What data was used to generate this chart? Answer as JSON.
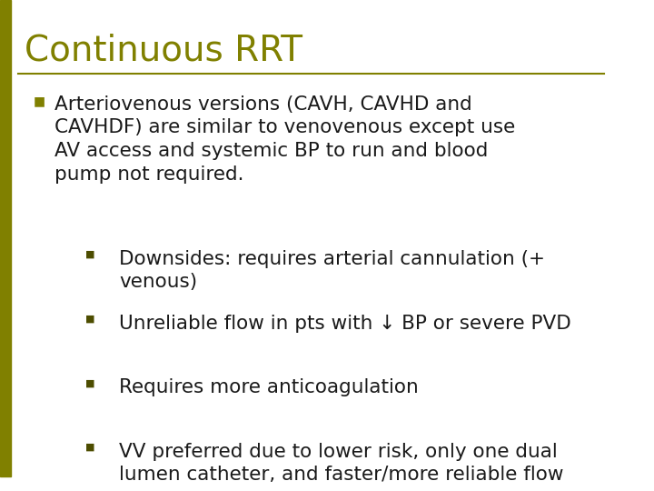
{
  "title": "Continuous RRT",
  "title_color": "#808000",
  "title_fontsize": 28,
  "background_color": "#FFFFFF",
  "line_color": "#808000",
  "bullet_color": "#808000",
  "sub_bullet_color": "#4d4d00",
  "text_color": "#1a1a1a",
  "left_bar_color": "#808000",
  "main_bullet": "Arteriovenous versions (CAVH, CAVHD and\nCAVHDF) are similar to venovenous except use\nAV access and systemic BP to run and blood\npump not required.",
  "sub_bullets": [
    "Downsides: requires arterial cannulation (+\nvenous)",
    "Unreliable flow in pts with ↓ BP or severe PVD",
    "Requires more anticoagulation",
    "VV preferred due to lower risk, only one dual\nlumen catheter, and faster/more reliable flow"
  ],
  "main_fontsize": 15.5,
  "sub_fontsize": 15.5
}
